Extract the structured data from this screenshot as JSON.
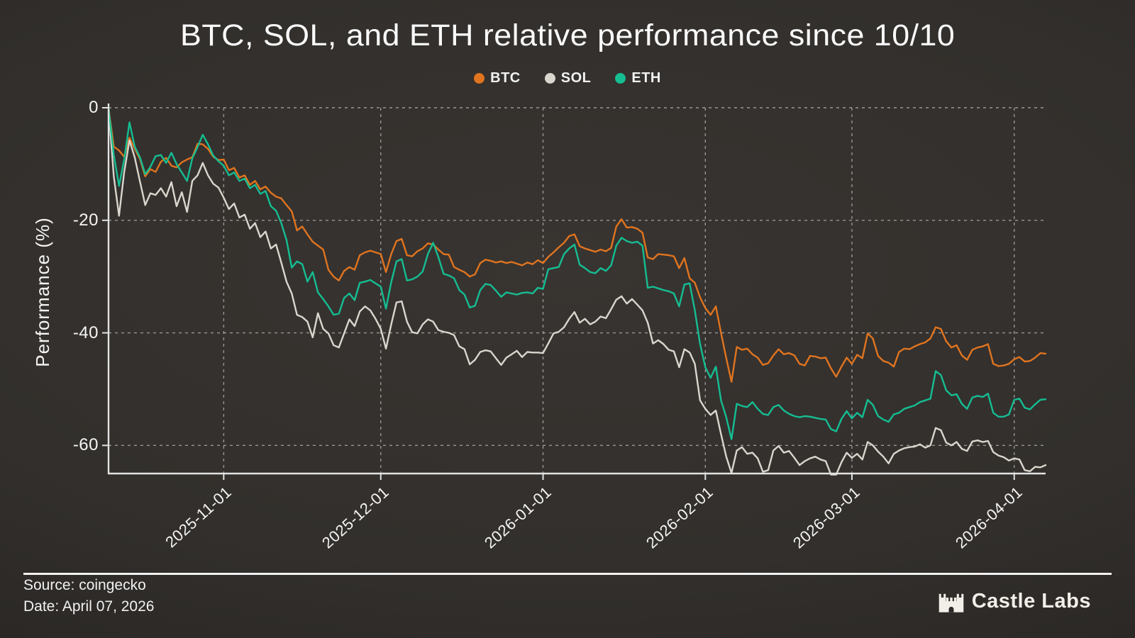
{
  "title": "BTC, SOL, and ETH relative performance since 10/10",
  "legend": {
    "items": [
      {
        "label": "BTC",
        "color": "#e0741f"
      },
      {
        "label": "SOL",
        "color": "#d9d6ce"
      },
      {
        "label": "ETH",
        "color": "#15bd92"
      }
    ]
  },
  "footer": {
    "source": "Source: coingecko",
    "date": "Date: April 07, 2026",
    "brand": "Castle Labs"
  },
  "chart_data": {
    "type": "line",
    "title": "BTC, SOL, and ETH relative performance since 10/10",
    "xlabel": "",
    "ylabel": "Performance (%)",
    "x_start": "2025-10-10",
    "x_end": "2026-04-07",
    "x_total_days": 179,
    "x_unit": "daily",
    "grid": true,
    "grid_style": "dashed",
    "legend_position": "top-center",
    "ylim": [
      -65,
      0
    ],
    "y_ticks": [
      {
        "label": "0",
        "value": 0
      },
      {
        "label": "-20",
        "value": -20
      },
      {
        "label": "-40",
        "value": -40
      },
      {
        "label": "-60",
        "value": -60
      }
    ],
    "x_ticks": [
      {
        "label": "2025-11-01",
        "day": 22
      },
      {
        "label": "2025-12-01",
        "day": 52
      },
      {
        "label": "2026-01-01",
        "day": 83
      },
      {
        "label": "2026-02-01",
        "day": 114
      },
      {
        "label": "2026-03-01",
        "day": 142
      },
      {
        "label": "2026-04-01",
        "day": 173
      }
    ],
    "series": [
      {
        "name": "BTC",
        "color": "#e0741f",
        "values": [
          0,
          -6.9,
          -7.6,
          -8.7,
          -5.3,
          -7.3,
          -9.1,
          -12.2,
          -10.9,
          -11.4,
          -9.6,
          -8.9,
          -10.3,
          -10.6,
          -9.7,
          -9.2,
          -8.8,
          -6.4,
          -6.5,
          -7.3,
          -8.7,
          -9.3,
          -9.2,
          -11.1,
          -10.7,
          -12.4,
          -12.0,
          -13.7,
          -13.0,
          -14.5,
          -14.0,
          -15.1,
          -15.8,
          -16.1,
          -17.3,
          -18.4,
          -21.8,
          -21.1,
          -22.5,
          -23.8,
          -24.5,
          -25.2,
          -28.8,
          -30.0,
          -30.7,
          -29.0,
          -28.3,
          -28.8,
          -26.2,
          -25.7,
          -25.4,
          -25.7,
          -26.0,
          -29.2,
          -26.0,
          -23.7,
          -23.3,
          -26.2,
          -26.4,
          -25.5,
          -25.0,
          -24.1,
          -24.3,
          -25.2,
          -26.0,
          -26.1,
          -28.3,
          -28.8,
          -29.2,
          -30.0,
          -29.6,
          -27.6,
          -27.0,
          -27.2,
          -27.5,
          -27.3,
          -27.6,
          -27.4,
          -27.7,
          -28.0,
          -27.5,
          -27.8,
          -27.1,
          -27.6,
          -26.5,
          -25.7,
          -24.8,
          -24.0,
          -22.8,
          -22.5,
          -24.6,
          -25.0,
          -25.3,
          -25.6,
          -25.2,
          -25.5,
          -24.9,
          -21.1,
          -19.8,
          -21.3,
          -21.2,
          -21.5,
          -22.2,
          -26.6,
          -26.9,
          -26.0,
          -26.1,
          -26.2,
          -26.4,
          -28.5,
          -26.7,
          -30.3,
          -31.1,
          -33.7,
          -35.6,
          -36.8,
          -35.3,
          -40.0,
          -44.5,
          -48.7,
          -42.5,
          -43.0,
          -42.8,
          -43.8,
          -44.4,
          -45.7,
          -45.4,
          -44.0,
          -42.9,
          -43.8,
          -43.6,
          -44.0,
          -45.5,
          -45.8,
          -44.1,
          -44.2,
          -44.5,
          -44.4,
          -46.3,
          -47.8,
          -46.0,
          -44.4,
          -45.5,
          -43.9,
          -44.5,
          -40.1,
          -41.0,
          -44.1,
          -45.0,
          -45.3,
          -46.0,
          -43.4,
          -42.8,
          -42.9,
          -42.4,
          -42.0,
          -41.7,
          -41.0,
          -39.0,
          -39.3,
          -41.5,
          -42.6,
          -42.2,
          -44.0,
          -44.8,
          -43.0,
          -42.6,
          -42.4,
          -42.0,
          -45.5,
          -45.9,
          -45.8,
          -45.5,
          -44.7,
          -44.3,
          -45.1,
          -45.0,
          -44.4,
          -43.6,
          -43.7
        ]
      },
      {
        "name": "SOL",
        "color": "#d9d6ce",
        "values": [
          0,
          -12.2,
          -19.2,
          -11.4,
          -5.8,
          -8.8,
          -13.1,
          -17.3,
          -15.2,
          -15.5,
          -14.3,
          -15.8,
          -13.2,
          -17.5,
          -15.0,
          -18.5,
          -13.0,
          -12.0,
          -9.8,
          -12.0,
          -13.5,
          -14.2,
          -16.0,
          -18.0,
          -17.0,
          -19.5,
          -19.0,
          -21.5,
          -20.5,
          -23.0,
          -22.0,
          -25.0,
          -24.3,
          -27.5,
          -30.9,
          -33.0,
          -36.8,
          -37.2,
          -38.0,
          -40.8,
          -36.5,
          -39.3,
          -40.1,
          -42.2,
          -42.6,
          -40.1,
          -37.6,
          -38.8,
          -36.2,
          -35.3,
          -36.0,
          -37.5,
          -39.3,
          -42.8,
          -38.5,
          -34.6,
          -34.4,
          -38.0,
          -39.9,
          -40.1,
          -38.5,
          -37.6,
          -38.0,
          -39.5,
          -39.8,
          -40.0,
          -40.4,
          -42.4,
          -42.9,
          -45.6,
          -44.8,
          -43.4,
          -43.1,
          -43.3,
          -44.5,
          -45.7,
          -44.4,
          -43.8,
          -43.2,
          -44.3,
          -43.4,
          -43.5,
          -43.5,
          -43.6,
          -41.9,
          -40.1,
          -39.8,
          -39.0,
          -37.5,
          -36.3,
          -38.2,
          -37.5,
          -38.5,
          -38.0,
          -37.1,
          -37.4,
          -35.8,
          -34.1,
          -33.5,
          -34.8,
          -34.0,
          -35.0,
          -36.0,
          -38.2,
          -41.9,
          -41.3,
          -42.0,
          -43.0,
          -43.3,
          -46.1,
          -42.9,
          -43.5,
          -45.5,
          -52.0,
          -53.5,
          -54.6,
          -53.8,
          -58.0,
          -62.0,
          -64.9,
          -60.9,
          -60.3,
          -61.5,
          -61.3,
          -62.3,
          -64.7,
          -64.4,
          -60.9,
          -60.1,
          -61.3,
          -61.0,
          -62.2,
          -63.5,
          -62.8,
          -62.3,
          -62.0,
          -62.5,
          -62.8,
          -65.2,
          -65.4,
          -63.0,
          -61.3,
          -62.2,
          -61.5,
          -62.5,
          -59.4,
          -60.0,
          -61.1,
          -62.0,
          -63.2,
          -61.5,
          -60.9,
          -60.5,
          -60.3,
          -60.2,
          -59.8,
          -60.4,
          -60.0,
          -56.9,
          -57.3,
          -59.5,
          -60.0,
          -59.4,
          -60.6,
          -61.0,
          -59.3,
          -59.1,
          -59.4,
          -59.2,
          -61.2,
          -61.8,
          -62.1,
          -62.7,
          -62.3,
          -62.5,
          -64.4,
          -64.6,
          -63.8,
          -63.9,
          -63.5
        ]
      },
      {
        "name": "ETH",
        "color": "#15bd92",
        "values": [
          0,
          -8.4,
          -13.9,
          -9.2,
          -2.6,
          -6.9,
          -8.8,
          -11.8,
          -10.5,
          -8.6,
          -8.4,
          -9.8,
          -8.0,
          -10.0,
          -11.5,
          -13.0,
          -9.0,
          -7.0,
          -4.8,
          -6.5,
          -8.5,
          -9.5,
          -10.3,
          -12.0,
          -11.5,
          -13.0,
          -12.6,
          -14.3,
          -13.7,
          -15.3,
          -14.8,
          -17.5,
          -18.3,
          -20.5,
          -23.5,
          -28.4,
          -27.3,
          -27.8,
          -30.9,
          -29.2,
          -32.8,
          -34.0,
          -35.3,
          -36.8,
          -36.6,
          -33.8,
          -33.0,
          -34.2,
          -31.1,
          -30.9,
          -30.6,
          -31.2,
          -31.8,
          -35.7,
          -31.0,
          -27.3,
          -26.9,
          -30.7,
          -30.5,
          -30.0,
          -29.1,
          -26.0,
          -24.0,
          -26.5,
          -29.5,
          -29.8,
          -30.3,
          -32.4,
          -33.2,
          -35.5,
          -35.2,
          -32.4,
          -31.3,
          -31.5,
          -32.5,
          -33.6,
          -32.8,
          -33.0,
          -33.2,
          -32.9,
          -32.8,
          -33.0,
          -32.0,
          -32.2,
          -28.7,
          -28.5,
          -28.3,
          -26.0,
          -25.0,
          -24.3,
          -27.9,
          -28.5,
          -29.2,
          -29.4,
          -28.5,
          -29.0,
          -28.0,
          -24.5,
          -23.1,
          -23.7,
          -24.0,
          -23.8,
          -24.5,
          -32.0,
          -31.8,
          -32.1,
          -32.4,
          -32.6,
          -33.0,
          -35.3,
          -31.4,
          -31.2,
          -36.0,
          -42.0,
          -46.1,
          -48.0,
          -46.0,
          -52.0,
          -55.0,
          -58.9,
          -52.6,
          -53.0,
          -53.2,
          -52.3,
          -53.5,
          -54.4,
          -54.6,
          -53.2,
          -52.8,
          -53.8,
          -54.4,
          -54.8,
          -55.0,
          -54.8,
          -54.9,
          -55.1,
          -55.3,
          -55.4,
          -57.1,
          -57.5,
          -55.3,
          -53.9,
          -55.2,
          -54.2,
          -55.0,
          -51.9,
          -52.8,
          -54.8,
          -55.4,
          -55.8,
          -54.5,
          -54.2,
          -53.5,
          -53.2,
          -52.9,
          -52.3,
          -52.0,
          -51.7,
          -46.8,
          -47.5,
          -50.2,
          -51.1,
          -50.9,
          -52.6,
          -53.5,
          -51.5,
          -51.2,
          -51.4,
          -50.8,
          -54.2,
          -54.9,
          -54.9,
          -54.5,
          -51.9,
          -51.7,
          -53.3,
          -53.6,
          -52.7,
          -51.9,
          -51.8
        ]
      }
    ]
  }
}
